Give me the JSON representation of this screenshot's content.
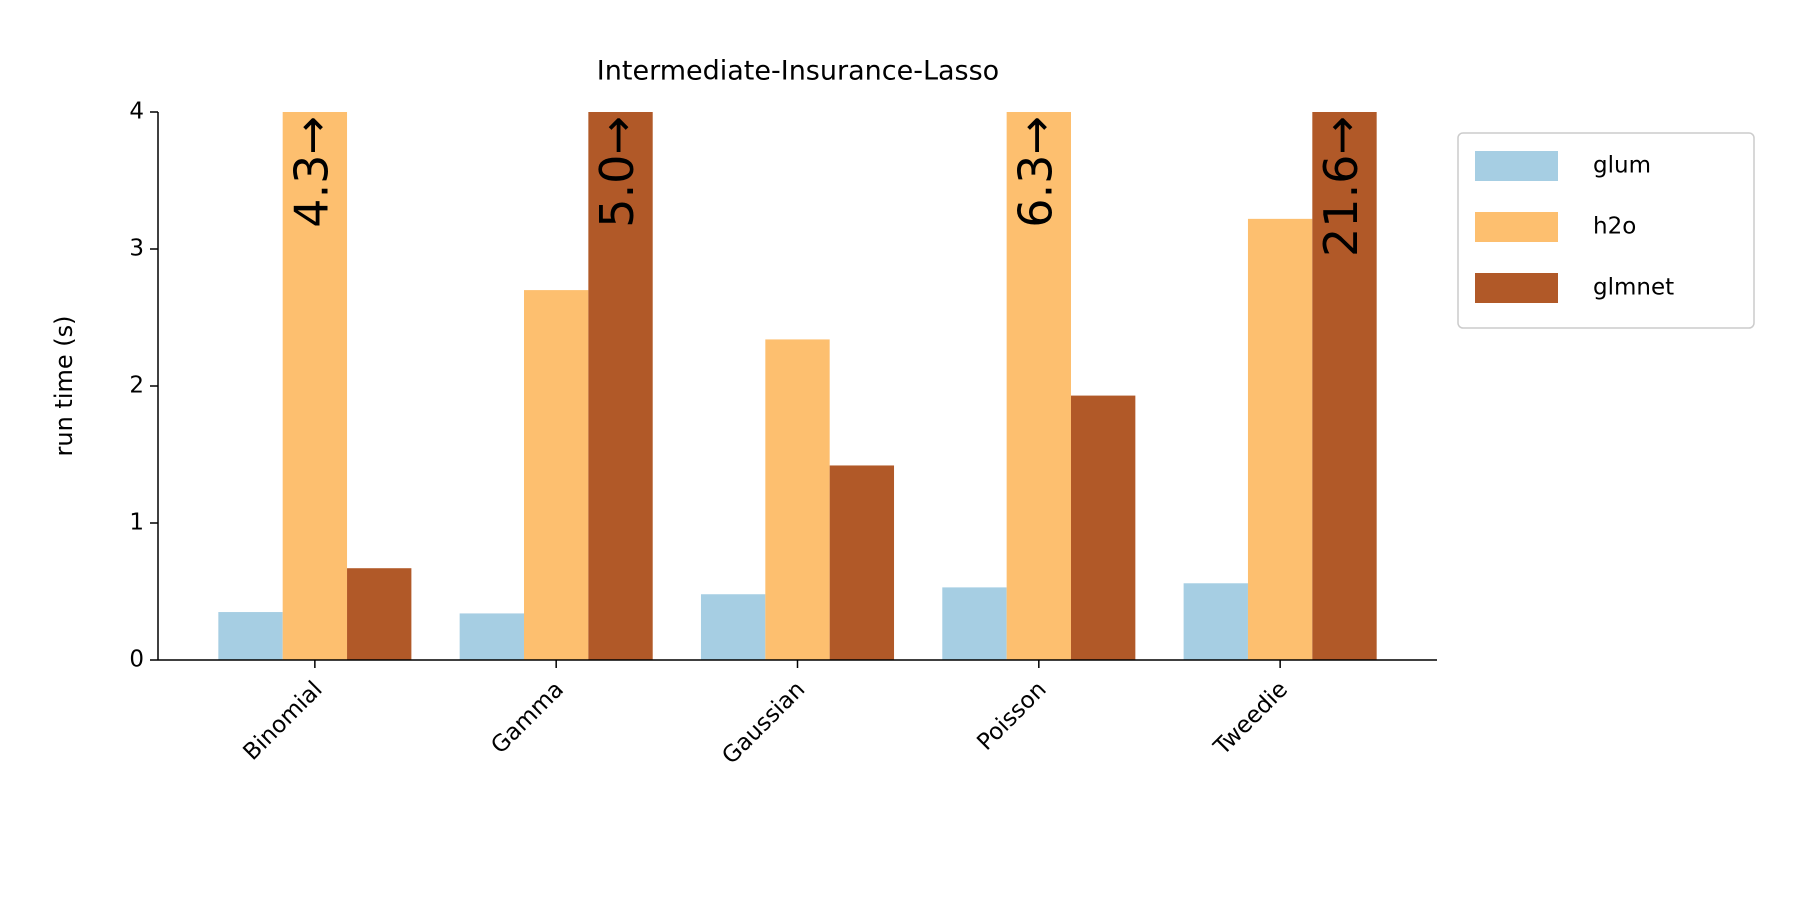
{
  "chart_data": {
    "type": "bar",
    "title": "Intermediate-Insurance-Lasso",
    "ylabel": "run time (s)",
    "categories": [
      "Binomial",
      "Gamma",
      "Gaussian",
      "Poisson",
      "Tweedie"
    ],
    "series": [
      {
        "name": "glum",
        "color": "#a6cee3",
        "values": [
          0.35,
          0.34,
          0.48,
          0.53,
          0.56
        ]
      },
      {
        "name": "h2o",
        "color": "#fdbf6f",
        "values": [
          4.3,
          2.7,
          2.34,
          6.3,
          3.22
        ],
        "value_labels": [
          "4.3→",
          null,
          null,
          "6.3→",
          null
        ]
      },
      {
        "name": "glmnet",
        "color": "#b15928",
        "values": [
          0.67,
          5.0,
          1.42,
          1.93,
          21.6
        ],
        "value_labels": [
          null,
          "5.0→",
          null,
          null,
          "21.6→"
        ]
      }
    ],
    "ylim": [
      0,
      4
    ],
    "yticks": [
      0,
      1,
      2,
      3,
      4
    ],
    "legend": "upper right outside"
  }
}
